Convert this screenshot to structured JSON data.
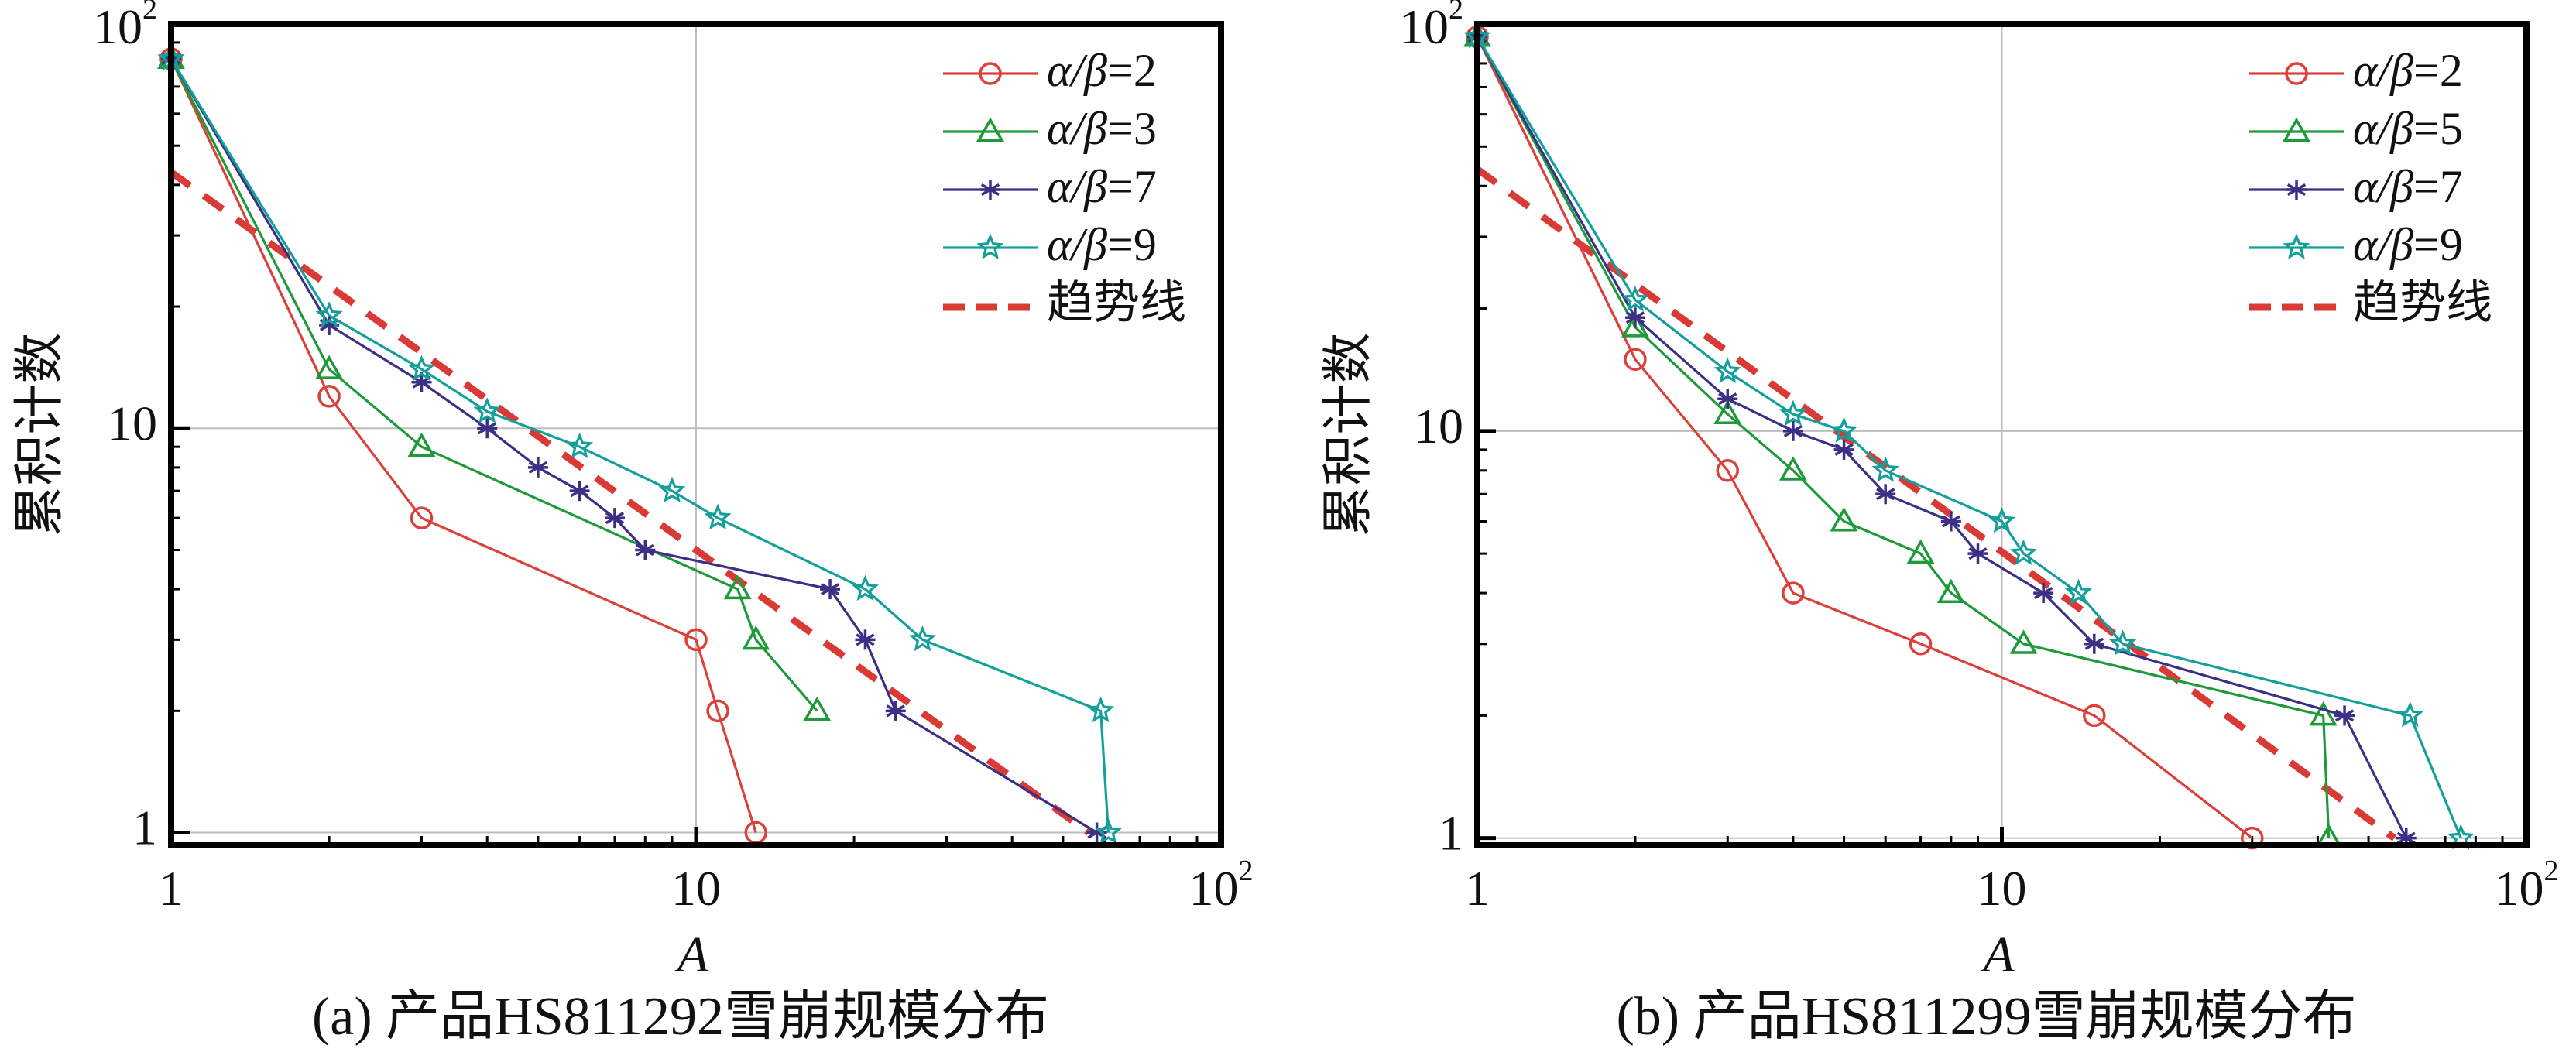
{
  "chart_data": [
    {
      "type": "line",
      "panel": "a",
      "caption": "(a) 产品HS811292雪崩规模分布",
      "xlabel": "A",
      "ylabel": "累积计数",
      "xscale": "log",
      "yscale": "log",
      "xlim": [
        1,
        100
      ],
      "ylim": [
        0.93,
        100
      ],
      "xticks": [
        {
          "v": 1,
          "label": "1",
          "sup": ""
        },
        {
          "v": 10,
          "label": "10",
          "sup": ""
        },
        {
          "v": 100,
          "label": "10",
          "sup": "2"
        }
      ],
      "yticks": [
        {
          "v": 1,
          "label": "1",
          "sup": ""
        },
        {
          "v": 10,
          "label": "10",
          "sup": ""
        },
        {
          "v": 100,
          "label": "10",
          "sup": "2"
        }
      ],
      "grid": true,
      "legend_position": "top-right",
      "series": [
        {
          "name": "α/β=2",
          "name_prefix": "α/β",
          "name_value": "=2",
          "color": "#d9413a",
          "marker": "circle",
          "x": [
            1,
            2,
            3,
            10,
            11,
            13
          ],
          "y": [
            82,
            12,
            6,
            3,
            2,
            1
          ]
        },
        {
          "name": "α/β=3",
          "name_prefix": "α/β",
          "name_value": "=3",
          "color": "#1f9a3b",
          "marker": "triangle",
          "x": [
            1,
            2,
            3,
            12,
            13,
            17
          ],
          "y": [
            82,
            14,
            9,
            4,
            3,
            2
          ]
        },
        {
          "name": "α/β=7",
          "name_prefix": "α/β",
          "name_value": "=7",
          "color": "#3b2f86",
          "marker": "asterisk",
          "x": [
            1,
            2,
            3,
            4,
            5,
            6,
            7,
            8,
            18,
            21,
            24,
            58
          ],
          "y": [
            82,
            18,
            13,
            10,
            8,
            7,
            6,
            5,
            4,
            3,
            2,
            1
          ]
        },
        {
          "name": "α/β=9",
          "name_prefix": "α/β",
          "name_value": "=9",
          "color": "#14a09a",
          "marker": "star",
          "x": [
            1,
            2,
            3,
            4,
            6,
            9,
            11,
            21,
            27,
            59,
            61
          ],
          "y": [
            82,
            19,
            14,
            11,
            9,
            7,
            6,
            4,
            3,
            2,
            1
          ]
        }
      ],
      "trend": {
        "name": "趋势线",
        "color": "#d93a35",
        "x": [
          1,
          56
        ],
        "y": [
          43,
          1
        ]
      }
    },
    {
      "type": "line",
      "panel": "b",
      "caption": "(b) 产品HS811299雪崩规模分布",
      "xlabel": "A",
      "ylabel": "累积计数",
      "xscale": "log",
      "yscale": "log",
      "xlim": [
        1,
        100
      ],
      "ylim": [
        0.96,
        100
      ],
      "xticks": [
        {
          "v": 1,
          "label": "1",
          "sup": ""
        },
        {
          "v": 10,
          "label": "10",
          "sup": ""
        },
        {
          "v": 100,
          "label": "10",
          "sup": "2"
        }
      ],
      "yticks": [
        {
          "v": 1,
          "label": "1",
          "sup": ""
        },
        {
          "v": 10,
          "label": "10",
          "sup": ""
        },
        {
          "v": 100,
          "label": "10",
          "sup": "2"
        }
      ],
      "grid": true,
      "legend_position": "top-right",
      "series": [
        {
          "name": "α/β=2",
          "name_prefix": "α/β",
          "name_value": "=2",
          "color": "#d9413a",
          "marker": "circle",
          "x": [
            1,
            2,
            3,
            4,
            7,
            15,
            30
          ],
          "y": [
            93,
            15,
            8,
            4,
            3,
            2,
            1
          ]
        },
        {
          "name": "α/β=5",
          "name_prefix": "α/β",
          "name_value": "=5",
          "color": "#1f9a3b",
          "marker": "triangle",
          "x": [
            1,
            2,
            3,
            4,
            5,
            7,
            8,
            11,
            41,
            42
          ],
          "y": [
            93,
            18,
            11,
            8,
            6,
            5,
            4,
            3,
            2,
            1
          ]
        },
        {
          "name": "α/β=7",
          "name_prefix": "α/β",
          "name_value": "=7",
          "color": "#3b2f86",
          "marker": "asterisk",
          "x": [
            1,
            2,
            3,
            4,
            5,
            6,
            8,
            9,
            12,
            15,
            45,
            59
          ],
          "y": [
            93,
            19,
            12,
            10,
            9,
            7,
            6,
            5,
            4,
            3,
            2,
            1
          ]
        },
        {
          "name": "α/β=9",
          "name_prefix": "α/β",
          "name_value": "=9",
          "color": "#14a09a",
          "marker": "star",
          "x": [
            1,
            2,
            3,
            4,
            5,
            6,
            10,
            11,
            14,
            17,
            60,
            75
          ],
          "y": [
            93,
            21,
            14,
            11,
            10,
            8,
            6,
            5,
            4,
            3,
            2,
            1
          ]
        }
      ],
      "trend": {
        "name": "趋势线",
        "color": "#d93a35",
        "x": [
          1,
          56
        ],
        "y": [
          44,
          1
        ]
      }
    }
  ]
}
